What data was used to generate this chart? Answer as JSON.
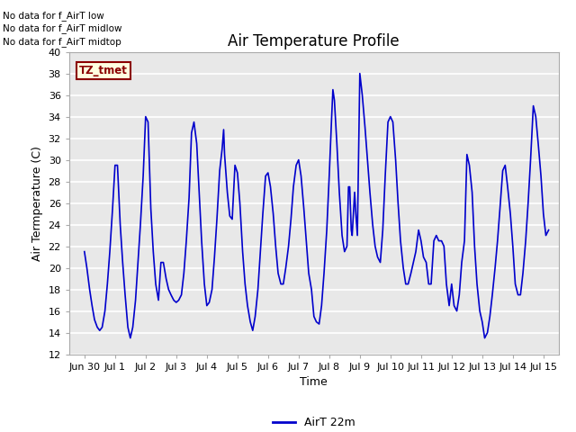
{
  "title": "Air Temperature Profile",
  "xlabel": "Time",
  "ylabel": "Air Termperature (C)",
  "ylim": [
    12,
    40
  ],
  "yticks": [
    12,
    14,
    16,
    18,
    20,
    22,
    24,
    26,
    28,
    30,
    32,
    34,
    36,
    38,
    40
  ],
  "line_color": "#0000CC",
  "bg_color": "#E8E8E8",
  "legend_label": "AirT 22m",
  "no_data_texts": [
    "No data for f_AirT low",
    "No data for f_AirT midlow",
    "No data for f_AirT midtop"
  ],
  "tz_label": "TZ_tmet",
  "x_tick_positions": [
    0,
    1,
    2,
    3,
    4,
    5,
    6,
    7,
    8,
    9,
    10,
    11,
    12,
    13,
    14,
    15
  ],
  "x_tick_labels": [
    "Jun 30",
    "Jul 1",
    "Jul 2",
    "Jul 3",
    "Jul 4",
    "Jul 5",
    "Jul 6",
    "Jul 7",
    "Jul 8",
    "Jul 9",
    "Jul 10",
    "Jul 11",
    "Jul 12",
    "Jul 13",
    "Jul 14",
    "Jul 15"
  ],
  "temperature_data": [
    [
      0.0,
      21.5
    ],
    [
      0.08,
      20.0
    ],
    [
      0.17,
      18.0
    ],
    [
      0.25,
      16.5
    ],
    [
      0.33,
      15.2
    ],
    [
      0.42,
      14.5
    ],
    [
      0.5,
      14.2
    ],
    [
      0.58,
      14.5
    ],
    [
      0.67,
      16.0
    ],
    [
      0.75,
      18.5
    ],
    [
      0.83,
      21.5
    ],
    [
      0.92,
      25.5
    ],
    [
      1.0,
      29.5
    ],
    [
      1.08,
      29.5
    ],
    [
      1.12,
      27.0
    ],
    [
      1.17,
      24.0
    ],
    [
      1.25,
      20.5
    ],
    [
      1.33,
      17.5
    ],
    [
      1.42,
      14.5
    ],
    [
      1.5,
      13.5
    ],
    [
      1.58,
      14.5
    ],
    [
      1.67,
      17.0
    ],
    [
      1.75,
      20.5
    ],
    [
      1.83,
      24.0
    ],
    [
      1.92,
      28.5
    ],
    [
      2.0,
      34.0
    ],
    [
      2.08,
      33.5
    ],
    [
      2.12,
      30.0
    ],
    [
      2.17,
      25.5
    ],
    [
      2.25,
      21.5
    ],
    [
      2.33,
      18.5
    ],
    [
      2.42,
      17.0
    ],
    [
      2.5,
      20.5
    ],
    [
      2.58,
      20.5
    ],
    [
      2.67,
      19.0
    ],
    [
      2.75,
      18.0
    ],
    [
      2.83,
      17.5
    ],
    [
      2.92,
      17.0
    ],
    [
      3.0,
      16.8
    ],
    [
      3.08,
      17.0
    ],
    [
      3.17,
      17.5
    ],
    [
      3.25,
      19.5
    ],
    [
      3.33,
      22.5
    ],
    [
      3.42,
      26.5
    ],
    [
      3.5,
      32.5
    ],
    [
      3.58,
      33.5
    ],
    [
      3.67,
      31.5
    ],
    [
      3.75,
      27.0
    ],
    [
      3.83,
      22.5
    ],
    [
      3.92,
      18.5
    ],
    [
      4.0,
      16.5
    ],
    [
      4.08,
      16.8
    ],
    [
      4.17,
      18.0
    ],
    [
      4.25,
      21.0
    ],
    [
      4.33,
      24.5
    ],
    [
      4.42,
      29.0
    ],
    [
      4.5,
      31.0
    ],
    [
      4.55,
      32.8
    ],
    [
      4.58,
      30.5
    ],
    [
      4.67,
      27.0
    ],
    [
      4.75,
      24.8
    ],
    [
      4.83,
      24.5
    ],
    [
      4.92,
      29.5
    ],
    [
      5.0,
      28.8
    ],
    [
      5.08,
      26.0
    ],
    [
      5.17,
      21.5
    ],
    [
      5.25,
      18.5
    ],
    [
      5.33,
      16.5
    ],
    [
      5.42,
      15.0
    ],
    [
      5.5,
      14.2
    ],
    [
      5.58,
      15.5
    ],
    [
      5.67,
      18.0
    ],
    [
      5.75,
      21.5
    ],
    [
      5.83,
      25.0
    ],
    [
      5.92,
      28.5
    ],
    [
      6.0,
      28.8
    ],
    [
      6.08,
      27.5
    ],
    [
      6.17,
      25.0
    ],
    [
      6.25,
      22.0
    ],
    [
      6.33,
      19.5
    ],
    [
      6.42,
      18.5
    ],
    [
      6.5,
      18.5
    ],
    [
      6.58,
      20.0
    ],
    [
      6.67,
      22.0
    ],
    [
      6.75,
      24.5
    ],
    [
      6.83,
      27.5
    ],
    [
      6.92,
      29.5
    ],
    [
      7.0,
      30.0
    ],
    [
      7.08,
      28.5
    ],
    [
      7.17,
      25.5
    ],
    [
      7.25,
      22.5
    ],
    [
      7.33,
      19.5
    ],
    [
      7.42,
      18.0
    ],
    [
      7.5,
      15.5
    ],
    [
      7.58,
      15.0
    ],
    [
      7.67,
      14.8
    ],
    [
      7.75,
      16.5
    ],
    [
      7.83,
      19.5
    ],
    [
      7.92,
      23.5
    ],
    [
      8.0,
      28.5
    ],
    [
      8.08,
      34.0
    ],
    [
      8.12,
      36.5
    ],
    [
      8.17,
      35.5
    ],
    [
      8.25,
      31.5
    ],
    [
      8.33,
      27.0
    ],
    [
      8.42,
      23.0
    ],
    [
      8.5,
      21.5
    ],
    [
      8.58,
      22.0
    ],
    [
      8.63,
      27.5
    ],
    [
      8.67,
      27.5
    ],
    [
      8.72,
      23.5
    ],
    [
      8.75,
      23.0
    ],
    [
      8.83,
      27.0
    ],
    [
      8.87,
      25.0
    ],
    [
      8.92,
      23.0
    ],
    [
      9.0,
      38.0
    ],
    [
      9.08,
      36.0
    ],
    [
      9.17,
      33.0
    ],
    [
      9.25,
      30.0
    ],
    [
      9.33,
      27.0
    ],
    [
      9.42,
      24.0
    ],
    [
      9.5,
      22.0
    ],
    [
      9.58,
      21.0
    ],
    [
      9.67,
      20.5
    ],
    [
      9.75,
      23.5
    ],
    [
      9.83,
      28.5
    ],
    [
      9.92,
      33.5
    ],
    [
      10.0,
      34.0
    ],
    [
      10.08,
      33.5
    ],
    [
      10.17,
      30.0
    ],
    [
      10.25,
      26.0
    ],
    [
      10.33,
      22.5
    ],
    [
      10.42,
      20.0
    ],
    [
      10.5,
      18.5
    ],
    [
      10.58,
      18.5
    ],
    [
      10.67,
      19.5
    ],
    [
      10.75,
      20.5
    ],
    [
      10.83,
      21.5
    ],
    [
      10.92,
      23.5
    ],
    [
      11.0,
      22.5
    ],
    [
      11.08,
      21.0
    ],
    [
      11.17,
      20.5
    ],
    [
      11.25,
      18.5
    ],
    [
      11.33,
      18.5
    ],
    [
      11.42,
      22.5
    ],
    [
      11.5,
      23.0
    ],
    [
      11.58,
      22.5
    ],
    [
      11.67,
      22.5
    ],
    [
      11.75,
      22.0
    ],
    [
      11.83,
      18.5
    ],
    [
      11.92,
      16.5
    ],
    [
      12.0,
      18.5
    ],
    [
      12.08,
      16.5
    ],
    [
      12.17,
      16.0
    ],
    [
      12.25,
      17.5
    ],
    [
      12.33,
      20.5
    ],
    [
      12.42,
      22.5
    ],
    [
      12.5,
      30.5
    ],
    [
      12.58,
      29.5
    ],
    [
      12.67,
      27.0
    ],
    [
      12.75,
      22.0
    ],
    [
      12.83,
      18.5
    ],
    [
      12.92,
      16.0
    ],
    [
      13.0,
      15.0
    ],
    [
      13.08,
      13.5
    ],
    [
      13.17,
      14.0
    ],
    [
      13.25,
      15.5
    ],
    [
      13.33,
      17.5
    ],
    [
      13.42,
      20.0
    ],
    [
      13.5,
      22.5
    ],
    [
      13.58,
      25.5
    ],
    [
      13.67,
      29.0
    ],
    [
      13.75,
      29.5
    ],
    [
      13.83,
      27.5
    ],
    [
      13.92,
      25.0
    ],
    [
      14.0,
      22.0
    ],
    [
      14.08,
      18.5
    ],
    [
      14.17,
      17.5
    ],
    [
      14.25,
      17.5
    ],
    [
      14.33,
      19.5
    ],
    [
      14.42,
      22.5
    ],
    [
      14.5,
      26.0
    ],
    [
      14.58,
      30.0
    ],
    [
      14.67,
      35.0
    ],
    [
      14.75,
      34.0
    ],
    [
      14.83,
      31.5
    ],
    [
      14.92,
      28.5
    ],
    [
      15.0,
      25.0
    ],
    [
      15.08,
      23.0
    ],
    [
      15.17,
      23.5
    ]
  ]
}
